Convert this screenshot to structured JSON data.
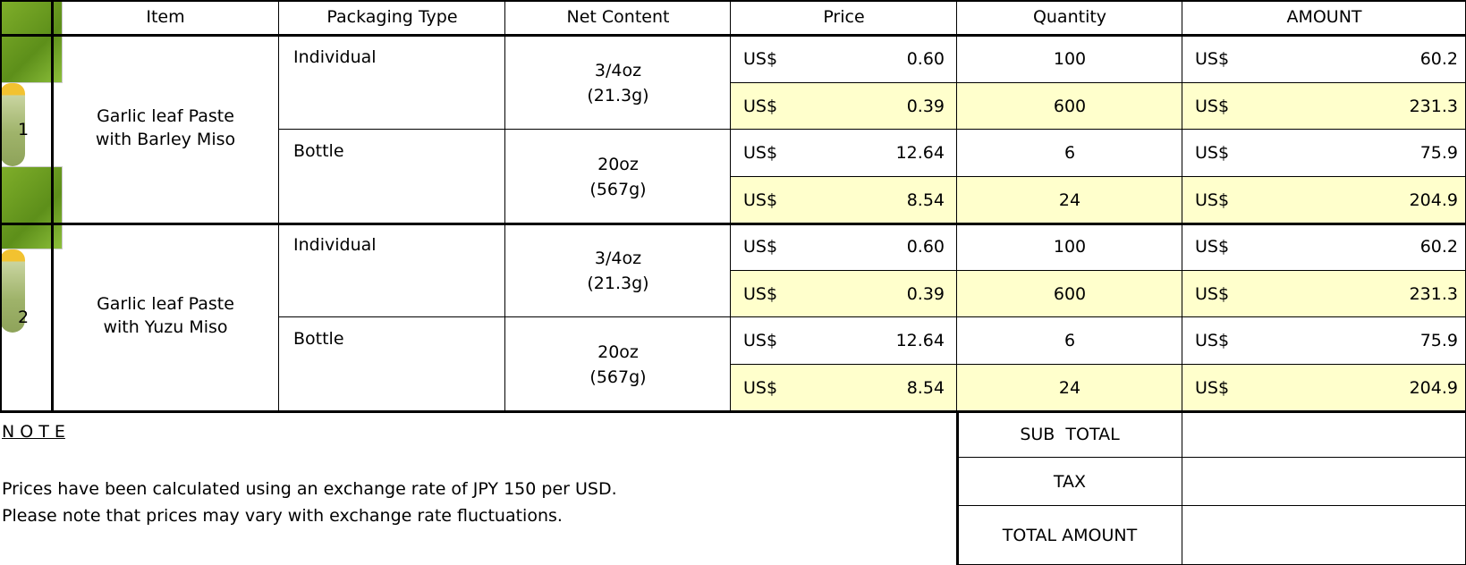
{
  "table": {
    "header": [
      "Item",
      "Packaging Type",
      "Net Content",
      "Price",
      "Quantity",
      "AMOUNT"
    ],
    "currency": "US$",
    "groups": [
      {
        "no": "1",
        "item": [
          "Garlic leaf Paste",
          "with Barley Miso"
        ],
        "packages": [
          {
            "type": "Individual",
            "net": [
              "3/4oz",
              "(21.3g)"
            ],
            "rows": [
              {
                "price": "0.60",
                "quantity": "100",
                "amount": "60.2",
                "highlight": false
              },
              {
                "price": "0.39",
                "quantity": "600",
                "amount": "231.3",
                "highlight": true
              }
            ]
          },
          {
            "type": "Bottle",
            "net": [
              "20oz",
              "(567g)"
            ],
            "rows": [
              {
                "price": "12.64",
                "quantity": "6",
                "amount": "75.9",
                "highlight": false
              },
              {
                "price": "8.54",
                "quantity": "24",
                "amount": "204.9",
                "highlight": true
              }
            ]
          }
        ]
      },
      {
        "no": "2",
        "item": [
          "Garlic leaf Paste",
          "with Yuzu Miso"
        ],
        "packages": [
          {
            "type": "Individual",
            "net": [
              "3/4oz",
              "(21.3g)"
            ],
            "rows": [
              {
                "price": "0.60",
                "quantity": "100",
                "amount": "60.2",
                "highlight": false
              },
              {
                "price": "0.39",
                "quantity": "600",
                "amount": "231.3",
                "highlight": true
              }
            ]
          },
          {
            "type": "Bottle",
            "net": [
              "20oz",
              "(567g)"
            ],
            "rows": [
              {
                "price": "12.64",
                "quantity": "6",
                "amount": "75.9",
                "highlight": false
              },
              {
                "price": "8.54",
                "quantity": "24",
                "amount": "204.9",
                "highlight": true
              }
            ]
          }
        ]
      }
    ],
    "note": {
      "title": "N O T E",
      "lines": [
        "Prices have been calculated using an exchange rate of JPY 150 per USD.",
        "Please note that prices may vary with exchange rate fluctuations."
      ]
    },
    "totals": [
      "SUB  TOTAL",
      "TAX",
      "TOTAL AMOUNT"
    ]
  }
}
